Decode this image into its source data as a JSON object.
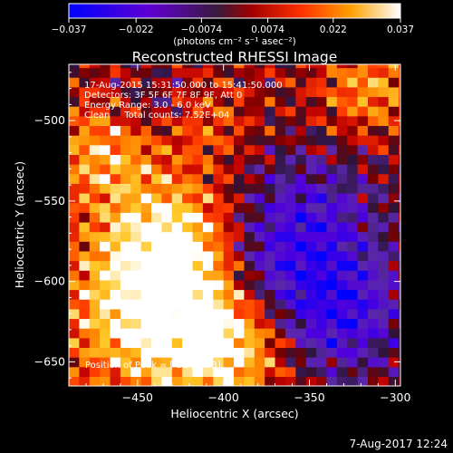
{
  "chart_data": {
    "type": "heatmap",
    "title": "Reconstructed RHESSI Image",
    "xlabel": "Heliocentric X (arcsec)",
    "ylabel": "Heliocentric Y (arcsec)",
    "xlim": [
      -490,
      -297
    ],
    "ylim": [
      -665,
      -465
    ],
    "xticks": [
      -450,
      -400,
      -350,
      -300
    ],
    "yticks": [
      -500,
      -550,
      -600,
      -650
    ],
    "xtick_labels": [
      "−450",
      "−400",
      "−350",
      "−300"
    ],
    "ytick_labels": [
      "−500",
      "−550",
      "−600",
      "−650"
    ],
    "colorbar": {
      "range": [
        -0.037,
        0.037
      ],
      "ticks": [
        -0.037,
        -0.022,
        -0.0074,
        0.0074,
        0.022,
        0.037
      ],
      "tick_labels": [
        "−0.037",
        "−0.022",
        "−0.0074",
        "0.0074",
        "0.022",
        "0.037"
      ],
      "units_text": "(photons cm⁻² s⁻¹ asec⁻²)",
      "colormap": "rhessi-blue-purple-red-yellow-white"
    },
    "annotations": [
      "17-Aug-2015 15:31:50.000 to 15:41:50.000",
      "Detectors: 3F 5F 6F 7F 8F 9F, Att 0",
      "Energy Range: 3.0 - 6.0 keV",
      "Clean     Total counts: 7.52E+04"
    ],
    "peak_label": "Position of Peak = [-384,-633]",
    "peak": {
      "x": -384,
      "y": -633
    },
    "grid": false
  },
  "footer": {
    "timestamp": "7-Aug-2017 12:24"
  }
}
